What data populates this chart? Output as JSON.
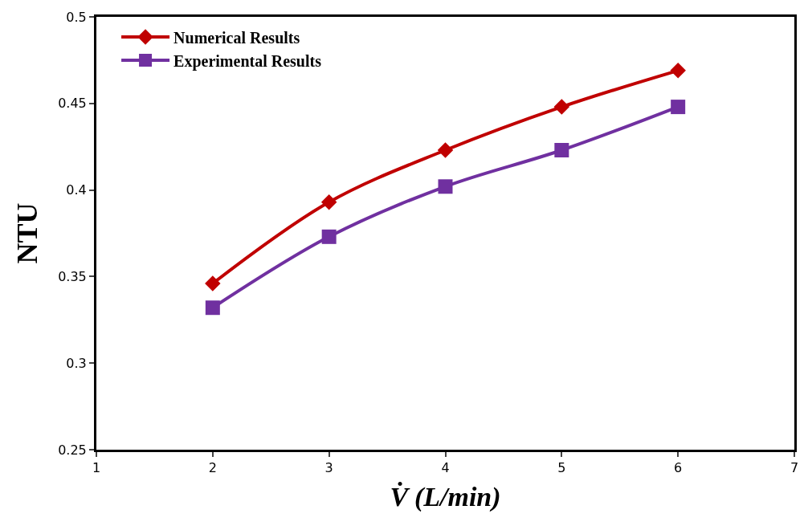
{
  "chart_data": {
    "type": "line",
    "xlabel": "V̇ (L/min)",
    "ylabel": "NTU",
    "x": [
      2,
      3,
      4,
      5,
      6
    ],
    "series": [
      {
        "name": "Numerical Results",
        "color": "#c00000",
        "marker": "diamond",
        "values": [
          0.346,
          0.393,
          0.423,
          0.448,
          0.469
        ]
      },
      {
        "name": "Experimental Results",
        "color": "#7030a0",
        "marker": "square",
        "values": [
          0.332,
          0.373,
          0.402,
          0.423,
          0.448
        ]
      }
    ],
    "xlim": [
      1,
      7
    ],
    "xticks": [
      1,
      2,
      3,
      4,
      5,
      6,
      7
    ],
    "ylim": [
      0.25,
      0.5
    ],
    "yticks": [
      0.25,
      0.3,
      0.35,
      0.4,
      0.45,
      0.5
    ],
    "legend": "top left",
    "line_style": "solid"
  }
}
